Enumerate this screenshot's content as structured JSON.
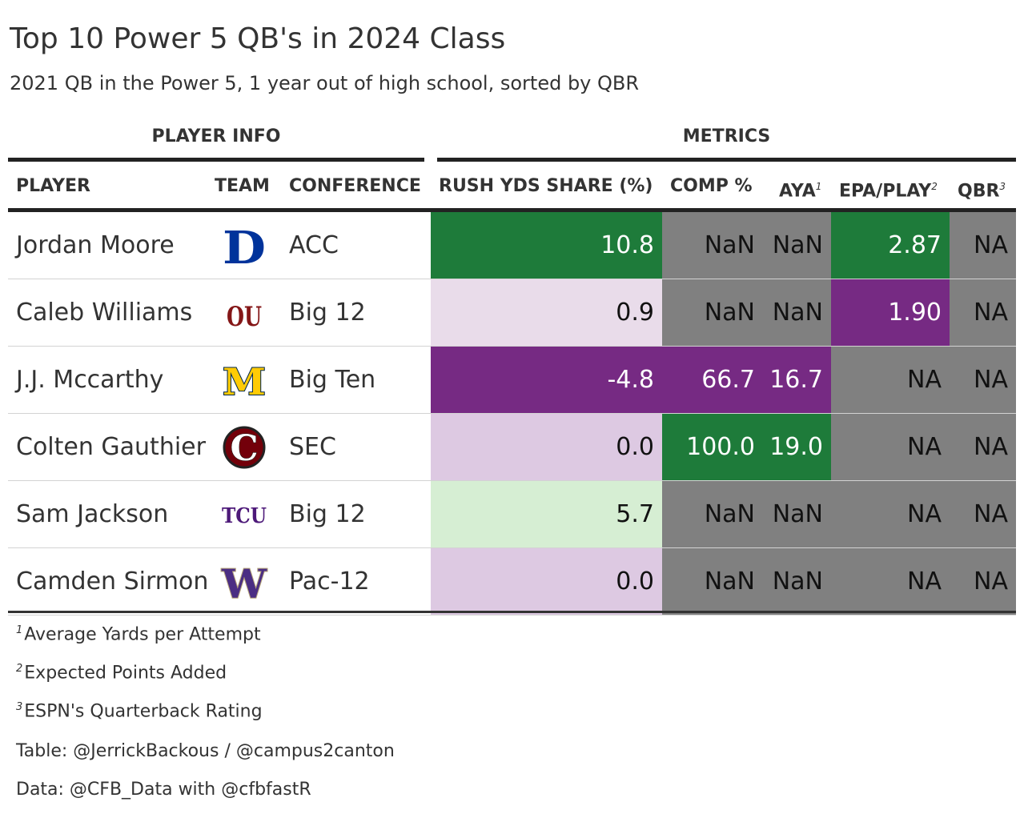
{
  "title": "Top 10 Power 5 QB's in 2024 Class",
  "subtitle": "2021 QB in the Power 5, 1 year out of high school, sorted by QBR",
  "spanners": {
    "player_info": "PLAYER INFO",
    "metrics": "METRICS"
  },
  "columns": {
    "player": "PLAYER",
    "team": "TEAM",
    "conference": "CONFERENCE",
    "rush": "RUSH YDS SHARE (%)",
    "comp": "COMP %",
    "aya": "AYA",
    "aya_mark": "1",
    "epa": "EPA/PLAY",
    "epa_mark": "2",
    "qbr": "QBR",
    "qbr_mark": "3"
  },
  "logos": {
    "duke": "D",
    "oklahoma": "OU",
    "michigan": "M",
    "south_carolina": "C",
    "tcu": "TCU",
    "washington": "W"
  },
  "chart_data": {
    "type": "table",
    "rows": [
      {
        "player": "Jordan Moore",
        "team_logo": "duke-logo",
        "conference": "ACC",
        "rush": "10.8",
        "comp": "NaN",
        "aya": "NaN",
        "epa": "2.87",
        "qbr": "NA",
        "rush_color": "#1e7b3a",
        "rush_text": "#ffffff",
        "comp_color": "#808080",
        "comp_text": "#111111",
        "aya_color": "#808080",
        "aya_text": "#111111",
        "epa_color": "#1e7b3a",
        "epa_text": "#ffffff",
        "qbr_color": "#808080",
        "qbr_text": "#111111"
      },
      {
        "player": "Caleb Williams",
        "team_logo": "oklahoma-logo",
        "conference": "Big 12",
        "rush": "0.9",
        "comp": "NaN",
        "aya": "NaN",
        "epa": "1.90",
        "qbr": "NA",
        "rush_color": "#e9dcea",
        "rush_text": "#111111",
        "comp_color": "#808080",
        "comp_text": "#111111",
        "aya_color": "#808080",
        "aya_text": "#111111",
        "epa_color": "#762a83",
        "epa_text": "#ffffff",
        "qbr_color": "#808080",
        "qbr_text": "#111111"
      },
      {
        "player": "J.J. Mccarthy",
        "team_logo": "michigan-logo",
        "conference": "Big Ten",
        "rush": "-4.8",
        "comp": "66.7",
        "aya": "16.7",
        "epa": "NA",
        "qbr": "NA",
        "rush_color": "#762a83",
        "rush_text": "#ffffff",
        "comp_color": "#762a83",
        "comp_text": "#ffffff",
        "aya_color": "#762a83",
        "aya_text": "#ffffff",
        "epa_color": "#808080",
        "epa_text": "#111111",
        "qbr_color": "#808080",
        "qbr_text": "#111111"
      },
      {
        "player": "Colten Gauthier",
        "team_logo": "south-carolina-logo",
        "conference": "SEC",
        "rush": "0.0",
        "comp": "100.0",
        "aya": "19.0",
        "epa": "NA",
        "qbr": "NA",
        "rush_color": "#ddc9e2",
        "rush_text": "#111111",
        "comp_color": "#1e7b3a",
        "comp_text": "#ffffff",
        "aya_color": "#1e7b3a",
        "aya_text": "#ffffff",
        "epa_color": "#808080",
        "epa_text": "#111111",
        "qbr_color": "#808080",
        "qbr_text": "#111111"
      },
      {
        "player": "Sam Jackson",
        "team_logo": "tcu-logo",
        "conference": "Big 12",
        "rush": "5.7",
        "comp": "NaN",
        "aya": "NaN",
        "epa": "NA",
        "qbr": "NA",
        "rush_color": "#d6eed3",
        "rush_text": "#111111",
        "comp_color": "#808080",
        "comp_text": "#111111",
        "aya_color": "#808080",
        "aya_text": "#111111",
        "epa_color": "#808080",
        "epa_text": "#111111",
        "qbr_color": "#808080",
        "qbr_text": "#111111"
      },
      {
        "player": "Camden Sirmon",
        "team_logo": "washington-logo",
        "conference": "Pac-12",
        "rush": "0.0",
        "comp": "NaN",
        "aya": "NaN",
        "epa": "NA",
        "qbr": "NA",
        "rush_color": "#ddc9e2",
        "rush_text": "#111111",
        "comp_color": "#808080",
        "comp_text": "#111111",
        "aya_color": "#808080",
        "aya_text": "#111111",
        "epa_color": "#808080",
        "epa_text": "#111111",
        "qbr_color": "#808080",
        "qbr_text": "#111111"
      }
    ]
  },
  "footnotes": [
    {
      "mark": "1",
      "text": "Average Yards per Attempt"
    },
    {
      "mark": "2",
      "text": "Expected Points Added"
    },
    {
      "mark": "3",
      "text": "ESPN's Quarterback Rating"
    }
  ],
  "source": {
    "table": "Table: @JerrickBackous / @campus2canton",
    "data": "Data: @CFB_Data with @cfbfastR"
  }
}
